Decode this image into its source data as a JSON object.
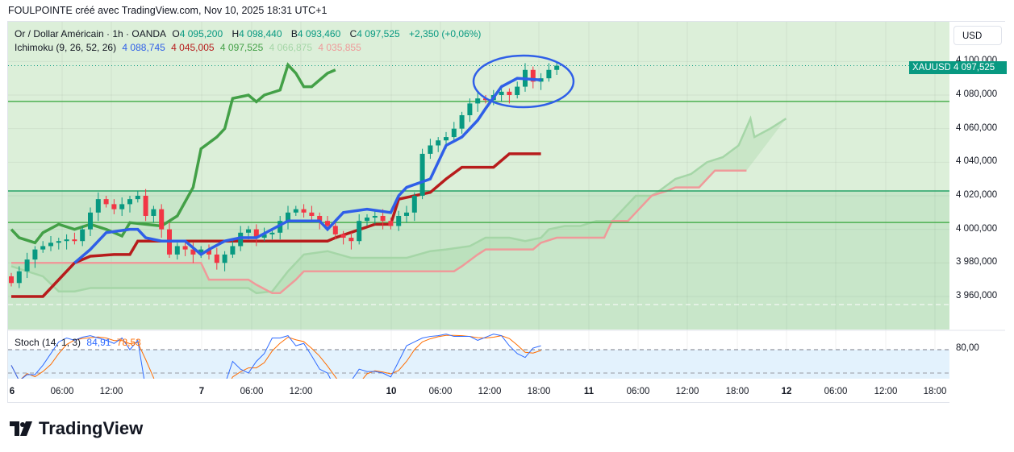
{
  "header": {
    "title": "FOULPOINTE créé avec TradingView.com, Nov 10, 2025 18:31 UTC+1"
  },
  "legend": {
    "symbol": "Or / Dollar Américain · 1h · OANDA",
    "open_label": "O",
    "open": "4 095,200",
    "high_label": "H",
    "high": "4 098,440",
    "low_label": "B",
    "low": "4 093,460",
    "close_label": "C",
    "close": "4 097,525",
    "change": "+2,350 (+0,06%)",
    "ichimoku_name": "Ichimoku (9, 26, 52, 26)",
    "ichimoku_values": [
      "4 088,745",
      "4 045,005",
      "4 097,525",
      "4 066,875",
      "4 035,855"
    ],
    "stoch_name": "Stoch (14, 1, 3)",
    "stoch_k": "84,91",
    "stoch_d": "78,53"
  },
  "currency": "USD",
  "price_tag": {
    "symbol": "XAUUSD",
    "value": "4 097,525",
    "price": 4097.525
  },
  "price_ticks": [
    {
      "v": 4100,
      "label": "4 100,000"
    },
    {
      "v": 4080,
      "label": "4 080,000"
    },
    {
      "v": 4060,
      "label": "4 060,000"
    },
    {
      "v": 4040,
      "label": "4 040,000"
    },
    {
      "v": 4020,
      "label": "4 020,000"
    },
    {
      "v": 4000,
      "label": "4 000,000"
    },
    {
      "v": 3980,
      "label": "3 980,000"
    },
    {
      "v": 3960,
      "label": "3 960,000"
    }
  ],
  "stoch_tick": {
    "v": 80,
    "label": "80,00"
  },
  "time_labels": [
    "6",
    "06:00",
    "12:00",
    "7",
    "06:00",
    "12:00",
    "10",
    "06:00",
    "12:00",
    "18:00",
    "11",
    "06:00",
    "12:00",
    "18:00",
    "12",
    "06:00",
    "12:00",
    "18:00"
  ],
  "colors": {
    "up": "#089981",
    "down": "#f23645",
    "conversion": "#2f5fe8",
    "base": "#b71c1c",
    "lagging": "#43a047",
    "spanA": "#a5d6a7",
    "spanB": "#ef9a9a",
    "hline": "#4caf50",
    "ellipse": "#2f5fe8",
    "stochK": "#2f6bff",
    "stochD": "#ff6d00"
  },
  "chart_data": {
    "type": "candlestick",
    "closes": [
      3968,
      3975,
      3982,
      3988,
      3990,
      3992,
      3993,
      3994,
      3993,
      4000,
      4010,
      4018,
      4015,
      4012,
      4015,
      4018,
      4020,
      4008,
      4012,
      4000,
      3985,
      3990,
      3988,
      3985,
      3988,
      3985,
      3980,
      3985,
      3990,
      3998,
      4000,
      3995,
      3997,
      3998,
      4005,
      4010,
      4012,
      4010,
      4008,
      4005,
      4002,
      3997,
      3995,
      3993,
      4005,
      4007,
      4008,
      4005,
      4002,
      4008,
      4010,
      4020,
      4045,
      4050,
      4053,
      4055,
      4060,
      4068,
      4075,
      4078,
      4077,
      4080,
      4082,
      4080,
      4085,
      4095,
      4088,
      4090,
      4095,
      4097.5
    ],
    "first_open": 3972,
    "horizontal_levels": [
      4076.2,
      4022.9,
      4004.1
    ],
    "ichimoku": {
      "conversion": [
        [
          8,
          3980
        ],
        [
          10,
          3988
        ],
        [
          12,
          3998
        ],
        [
          15,
          4000
        ],
        [
          16,
          4000
        ],
        [
          17,
          3995
        ],
        [
          19,
          3993
        ],
        [
          22,
          3993
        ],
        [
          24,
          3985
        ],
        [
          25,
          3988
        ],
        [
          27,
          3993
        ],
        [
          29,
          3995
        ],
        [
          31,
          3995
        ],
        [
          33,
          4000
        ],
        [
          35,
          4005
        ],
        [
          37,
          4005
        ],
        [
          39,
          4005
        ],
        [
          40,
          4000
        ],
        [
          42,
          4010
        ],
        [
          45,
          4012
        ],
        [
          48,
          4010
        ],
        [
          49,
          4020
        ],
        [
          50,
          4025
        ],
        [
          53,
          4030
        ],
        [
          55,
          4050
        ],
        [
          57,
          4055
        ],
        [
          59,
          4065
        ],
        [
          60,
          4072
        ],
        [
          62,
          4085
        ],
        [
          64,
          4090
        ],
        [
          67,
          4089
        ]
      ],
      "base": [
        [
          0,
          3960
        ],
        [
          4,
          3960
        ],
        [
          6,
          3970
        ],
        [
          8,
          3980
        ],
        [
          10,
          3984
        ],
        [
          13,
          3985
        ],
        [
          15,
          3985
        ],
        [
          16,
          3993
        ],
        [
          25,
          3993
        ],
        [
          40,
          3993
        ],
        [
          41,
          3995
        ],
        [
          46,
          4003
        ],
        [
          48,
          4003
        ],
        [
          49,
          4018
        ],
        [
          53,
          4022
        ],
        [
          55,
          4030
        ],
        [
          57,
          4037
        ],
        [
          61,
          4037
        ],
        [
          63,
          4045
        ],
        [
          67,
          4045
        ]
      ],
      "lagging": [
        [
          0,
          4000
        ],
        [
          1,
          3995
        ],
        [
          3,
          3992
        ],
        [
          4,
          3998
        ],
        [
          6,
          4003
        ],
        [
          8,
          4000
        ],
        [
          10,
          4003
        ],
        [
          12,
          4000
        ],
        [
          14,
          3996
        ],
        [
          15,
          4004
        ],
        [
          17,
          4003
        ],
        [
          19,
          4002
        ],
        [
          21,
          4008
        ],
        [
          23,
          4025
        ],
        [
          24,
          4048
        ],
        [
          26,
          4055
        ],
        [
          27,
          4060
        ],
        [
          28,
          4078
        ],
        [
          30,
          4080
        ],
        [
          31,
          4076
        ],
        [
          32,
          4080
        ],
        [
          34,
          4083
        ],
        [
          35,
          4098
        ],
        [
          36,
          4093
        ],
        [
          37,
          4085
        ],
        [
          38,
          4085
        ],
        [
          40,
          4093
        ],
        [
          41,
          4095
        ]
      ],
      "spanA": [
        [
          0,
          3978
        ],
        [
          4,
          3972
        ],
        [
          6,
          3963
        ],
        [
          8,
          3963
        ],
        [
          10,
          3965
        ],
        [
          30,
          3965
        ],
        [
          31,
          3962
        ],
        [
          33,
          3963
        ],
        [
          35,
          3975
        ],
        [
          37,
          3985
        ],
        [
          40,
          3987
        ],
        [
          43,
          3983
        ],
        [
          50,
          3983
        ],
        [
          53,
          3987
        ],
        [
          55,
          3988
        ],
        [
          58,
          3990
        ],
        [
          60,
          3995
        ],
        [
          63,
          3995
        ],
        [
          65,
          3993
        ],
        [
          67,
          3995
        ],
        [
          68,
          4000
        ],
        [
          70,
          4002
        ],
        [
          72,
          4002
        ],
        [
          74,
          4005
        ],
        [
          76,
          4005
        ],
        [
          77,
          4010
        ],
        [
          79,
          4020
        ],
        [
          81,
          4020
        ],
        [
          82,
          4023
        ],
        [
          84,
          4030
        ],
        [
          86,
          4033
        ],
        [
          88,
          4040
        ],
        [
          90,
          4043
        ],
        [
          92,
          4050
        ],
        [
          94,
          4055
        ],
        [
          96,
          4060
        ],
        [
          98,
          4066
        ],
        [
          93.5,
          4066
        ]
      ],
      "spanB": [
        [
          0,
          3980
        ],
        [
          24,
          3980
        ],
        [
          25,
          3970
        ],
        [
          30,
          3970
        ],
        [
          31,
          3967
        ],
        [
          33,
          3962
        ],
        [
          34,
          3962
        ],
        [
          36,
          3970
        ],
        [
          37,
          3975
        ],
        [
          56,
          3975
        ],
        [
          57,
          3978
        ],
        [
          59,
          3985
        ],
        [
          60,
          3988
        ],
        [
          66,
          3988
        ],
        [
          67,
          3992
        ],
        [
          69,
          3995
        ],
        [
          75,
          3995
        ],
        [
          76,
          4005
        ],
        [
          78,
          4005
        ],
        [
          79,
          4010
        ],
        [
          81,
          4020
        ],
        [
          83,
          4023
        ],
        [
          84,
          4025
        ],
        [
          87,
          4025
        ],
        [
          88,
          4030
        ],
        [
          89,
          4035
        ],
        [
          93,
          4035
        ]
      ]
    },
    "stoch_k": [
      60,
      40,
      48,
      48,
      60,
      75,
      90,
      95,
      92,
      96,
      98,
      95,
      92,
      88,
      95,
      80,
      92,
      30,
      10,
      5,
      5,
      5,
      15,
      10,
      5,
      5,
      35,
      35,
      65,
      55,
      50,
      65,
      75,
      95,
      95,
      98,
      85,
      88,
      72,
      55,
      50,
      30,
      15,
      40,
      55,
      52,
      52,
      50,
      45,
      65,
      85,
      90,
      95,
      97,
      98,
      100,
      97,
      97,
      97,
      92,
      96,
      100,
      98,
      85,
      75,
      70,
      82,
      85
    ],
    "stoch_bands": [
      80,
      50,
      20
    ],
    "ylim": [
      3945,
      4110
    ]
  }
}
